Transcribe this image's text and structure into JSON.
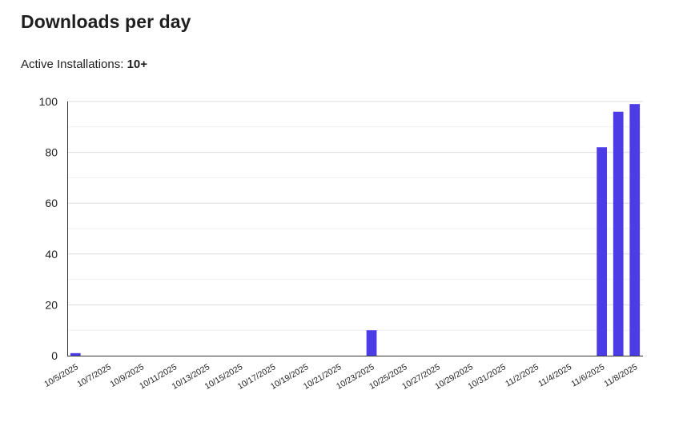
{
  "title": "Downloads per day",
  "installs": {
    "label": "Active Installations:",
    "value": "10+"
  },
  "colors": {
    "bar": "#4b3ce6",
    "grid": "#dcdcdc",
    "minor_grid": "#f1f1f1",
    "axis": "#333333"
  },
  "chart_data": {
    "type": "bar",
    "x": [
      "10/5/2025",
      "10/6/2025",
      "10/7/2025",
      "10/8/2025",
      "10/9/2025",
      "10/10/2025",
      "10/11/2025",
      "10/12/2025",
      "10/13/2025",
      "10/14/2025",
      "10/15/2025",
      "10/16/2025",
      "10/17/2025",
      "10/18/2025",
      "10/19/2025",
      "10/20/2025",
      "10/21/2025",
      "10/22/2025",
      "10/23/2025",
      "10/24/2025",
      "10/25/2025",
      "10/26/2025",
      "10/27/2025",
      "10/28/2025",
      "10/29/2025",
      "10/30/2025",
      "10/31/2025",
      "11/1/2025",
      "11/2/2025",
      "11/3/2025",
      "11/4/2025",
      "11/5/2025",
      "11/6/2025",
      "11/7/2025",
      "11/8/2025"
    ],
    "values": [
      1,
      0,
      0,
      0,
      0,
      0,
      0,
      0,
      0,
      0,
      0,
      0,
      0,
      0,
      0,
      0,
      0,
      0,
      10,
      0,
      0,
      0,
      0,
      0,
      0,
      0,
      0,
      0,
      0,
      0,
      0,
      0,
      82,
      96,
      99
    ],
    "tick_labels": [
      "10/5/2025",
      "10/7/2025",
      "10/9/2025",
      "10/11/2025",
      "10/13/2025",
      "10/15/2025",
      "10/17/2025",
      "10/19/2025",
      "10/21/2025",
      "10/23/2025",
      "10/25/2025",
      "10/27/2025",
      "10/29/2025",
      "10/31/2025",
      "11/2/2025",
      "11/4/2025",
      "11/6/2025",
      "11/8/2025"
    ],
    "y_ticks": [
      0,
      20,
      40,
      60,
      80,
      100
    ],
    "ylim": [
      0,
      100
    ],
    "grid": true,
    "legend": "none"
  }
}
